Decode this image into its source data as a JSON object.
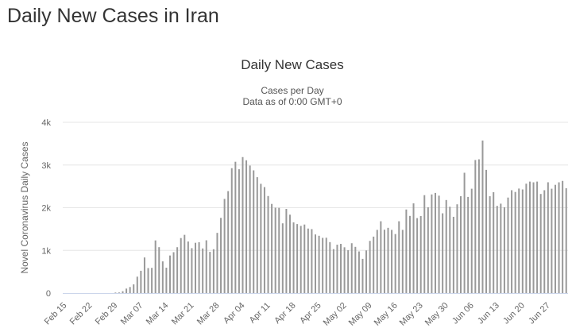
{
  "page": {
    "title": "Daily New Cases in Iran"
  },
  "chart_data": {
    "type": "bar",
    "title": "Daily New Cases",
    "subtitle_line1": "Cases per Day",
    "subtitle_line2": "Data as of 0:00 GMT+0",
    "ylabel": "Novel Coronavirus Daily Cases",
    "xlabel": "",
    "ylim": [
      0,
      4000
    ],
    "y_ticks": [
      0,
      1000,
      2000,
      3000,
      4000
    ],
    "y_tick_labels": [
      "0",
      "1k",
      "2k",
      "3k",
      "4k"
    ],
    "x_tick_labels": [
      "Feb 15",
      "Feb 22",
      "Feb 29",
      "Mar 07",
      "Mar 14",
      "Mar 21",
      "Mar 28",
      "Apr 04",
      "Apr 11",
      "Apr 18",
      "Apr 25",
      "May 02",
      "May 09",
      "May 16",
      "May 23",
      "May 30",
      "Jun 06",
      "Jun 13",
      "Jun 20",
      "Jun 27"
    ],
    "grid": true,
    "bar_color": "#999999",
    "series": [
      {
        "values": [
          0,
          0,
          0,
          0,
          0,
          0,
          0,
          0,
          0,
          0,
          0,
          0,
          0,
          0,
          13,
          15,
          44,
          106,
          143,
          205,
          385,
          523,
          835,
          586,
          591,
          1234,
          1076,
          743,
          595,
          881,
          958,
          1075,
          1289,
          1365,
          1209,
          1053,
          1178,
          1192,
          1046,
          1237,
          966,
          1028,
          1411,
          1762,
          2206,
          2389,
          2926,
          3076,
          2901,
          3186,
          3111,
          2988,
          2875,
          2715,
          2560,
          2483,
          2274,
          2089,
          2000,
          1997,
          1634,
          1972,
          1837,
          1657,
          1617,
          1574,
          1606,
          1512,
          1499,
          1374,
          1343,
          1294,
          1297,
          1194,
          1030,
          1134,
          1153,
          1073,
          1006,
          1168,
          1083,
          976,
          802,
          1000,
          1223,
          1323,
          1481,
          1683,
          1485,
          1529,
          1481,
          1383,
          1683,
          1481,
          1958,
          1808,
          2102,
          1757,
          1806,
          2294,
          2011,
          2311,
          2346,
          2282,
          1869,
          2180,
          2023,
          1787,
          2080,
          2269,
          2819,
          2253,
          2445,
          3117,
          3134,
          3574,
          2886,
          2269,
          2364,
          2043,
          2095,
          2011,
          2238,
          2410,
          2369,
          2449,
          2428,
          2563,
          2612,
          2595,
          2612,
          2322,
          2410,
          2596,
          2445,
          2536,
          2595,
          2628,
          2456
        ]
      }
    ]
  }
}
